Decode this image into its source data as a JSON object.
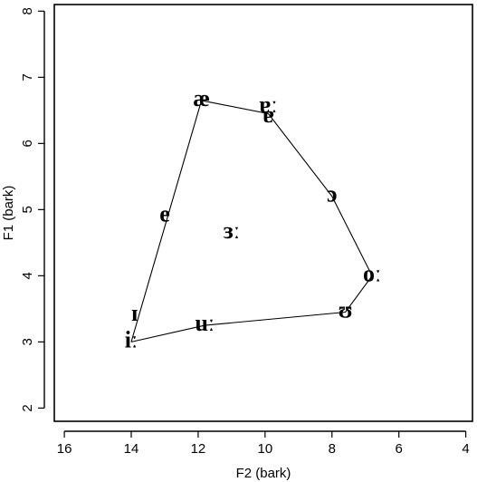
{
  "chart_data": {
    "type": "scatter",
    "xlabel": "F2 (bark)",
    "ylabel": "F1 (bark)",
    "xlim": [
      16.3,
      3.8
    ],
    "ylim": [
      8.1,
      1.8
    ],
    "x_ticks": [
      16,
      14,
      12,
      10,
      8,
      6,
      4
    ],
    "y_ticks": [
      2,
      3,
      4,
      5,
      6,
      7,
      8
    ],
    "points": [
      {
        "label": "iː",
        "x": 14.0,
        "y": 3.0
      },
      {
        "label": "ɪ",
        "x": 13.9,
        "y": 3.4
      },
      {
        "label": "uː",
        "x": 11.8,
        "y": 3.25
      },
      {
        "label": "ʊ",
        "x": 7.6,
        "y": 3.45
      },
      {
        "label": "oː",
        "x": 6.8,
        "y": 4.0
      },
      {
        "label": "ɜː",
        "x": 11.0,
        "y": 4.65
      },
      {
        "label": "e",
        "x": 13.0,
        "y": 4.9
      },
      {
        "label": "ɔ",
        "x": 8.0,
        "y": 5.2
      },
      {
        "label": "ɐ",
        "x": 9.9,
        "y": 6.4
      },
      {
        "label": "ɐː",
        "x": 9.9,
        "y": 6.55
      },
      {
        "label": "æ",
        "x": 11.9,
        "y": 6.65
      }
    ],
    "polygon": [
      {
        "x": 14.0,
        "y": 3.0
      },
      {
        "x": 11.8,
        "y": 3.25
      },
      {
        "x": 7.6,
        "y": 3.45
      },
      {
        "x": 6.8,
        "y": 4.0
      },
      {
        "x": 8.0,
        "y": 5.2
      },
      {
        "x": 9.9,
        "y": 6.45
      },
      {
        "x": 11.9,
        "y": 6.65
      },
      {
        "x": 14.0,
        "y": 3.0
      }
    ],
    "grid": false,
    "legend": "none"
  }
}
